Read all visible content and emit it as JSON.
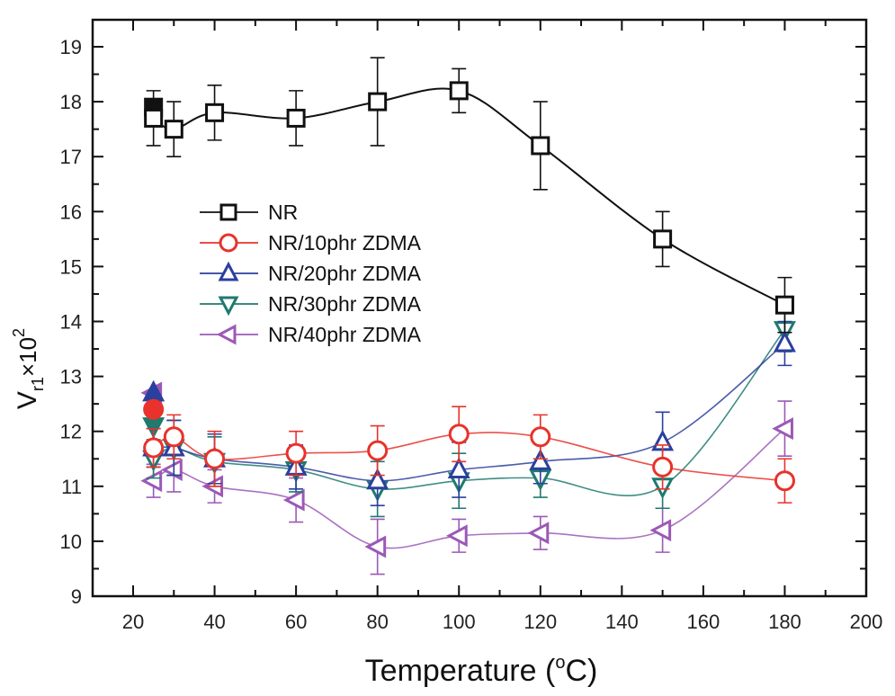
{
  "chart_data": {
    "type": "line",
    "title": "",
    "xlabel": "Temperature (°C)",
    "xlabel_parts": {
      "main": "Temperature (",
      "sup": "o",
      "unit": "C)"
    },
    "ylabel": "Vr1×10²",
    "ylabel_parts": {
      "main": "V",
      "sub": "r1",
      "mid": "×10",
      "sup": "2"
    },
    "xlim": [
      10,
      200
    ],
    "ylim": [
      9,
      19.5
    ],
    "xticks": [
      20,
      40,
      60,
      80,
      100,
      120,
      140,
      160,
      180,
      200
    ],
    "xticks_minor": [
      30,
      50,
      70,
      90,
      110,
      130,
      150,
      170,
      190
    ],
    "yticks": [
      9,
      10,
      11,
      12,
      13,
      14,
      15,
      16,
      17,
      18,
      19
    ],
    "yticks_minor": [
      9.5,
      10.5,
      11.5,
      12.5,
      13.5,
      14.5,
      15.5,
      16.5,
      17.5,
      18.5
    ],
    "grid": false,
    "legend_position": "center-left",
    "x": [
      25,
      30,
      40,
      60,
      80,
      100,
      120,
      150,
      180
    ],
    "series": [
      {
        "name": "NR",
        "color": "#111111",
        "marker": "square",
        "values": [
          17.7,
          17.5,
          17.8,
          17.7,
          18.0,
          18.2,
          17.2,
          15.5,
          14.3
        ],
        "errors": [
          0.5,
          0.5,
          0.5,
          0.5,
          0.8,
          0.4,
          0.8,
          0.5,
          0.5
        ],
        "reference_point": {
          "x": 25,
          "y": 17.9
        }
      },
      {
        "name": "NR/10phr ZDMA",
        "color": "#e8322b",
        "marker": "circle",
        "values": [
          11.7,
          11.9,
          11.5,
          11.6,
          11.65,
          11.95,
          11.9,
          11.35,
          11.1
        ],
        "errors": [
          0.35,
          0.4,
          0.5,
          0.4,
          0.45,
          0.5,
          0.4,
          0.4,
          0.4
        ],
        "reference_point": {
          "x": 25,
          "y": 12.4
        }
      },
      {
        "name": "NR/20phr ZDMA",
        "color": "#2b3f9e",
        "marker": "triangle-up",
        "values": [
          11.7,
          11.7,
          11.5,
          11.35,
          11.1,
          11.3,
          11.45,
          11.8,
          13.6
        ],
        "errors": [
          0.35,
          0.5,
          0.45,
          0.4,
          0.45,
          0.5,
          0.4,
          0.55,
          0.4
        ],
        "reference_point": {
          "x": 25,
          "y": 12.7
        }
      },
      {
        "name": "NR/30phr ZDMA",
        "color": "#1f7a70",
        "marker": "triangle-down",
        "values": [
          11.5,
          11.7,
          11.45,
          11.3,
          10.95,
          11.1,
          11.15,
          11.0,
          13.85
        ],
        "errors": [
          0.35,
          0.5,
          0.45,
          0.4,
          0.5,
          0.5,
          0.35,
          0.4,
          0.4
        ],
        "reference_point": {
          "x": 25,
          "y": 12.1
        }
      },
      {
        "name": "NR/40phr ZDMA",
        "color": "#9b59b6",
        "marker": "triangle-left",
        "values": [
          11.1,
          11.3,
          11.0,
          10.75,
          9.9,
          10.1,
          10.15,
          10.2,
          12.05
        ],
        "errors": [
          0.3,
          0.4,
          0.3,
          0.4,
          0.5,
          0.3,
          0.3,
          0.4,
          0.5
        ],
        "reference_point": {
          "x": 25,
          "y": 12.7
        }
      }
    ]
  }
}
